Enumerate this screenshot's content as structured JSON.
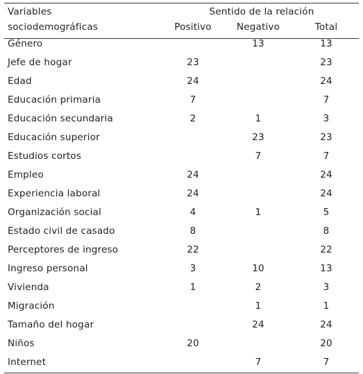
{
  "header": {
    "var_line1": "Variables",
    "var_line2": "sociodemográficas",
    "group_title": "Sentido de la relación",
    "col_positivo": "Positivo",
    "col_negativo": "Negativo",
    "col_total": "Total"
  },
  "rows": [
    {
      "variable": "Género",
      "positivo": "",
      "negativo": "13",
      "total": "13"
    },
    {
      "variable": "Jefe de hogar",
      "positivo": "23",
      "negativo": "",
      "total": "23"
    },
    {
      "variable": "Edad",
      "positivo": "24",
      "negativo": "",
      "total": "24"
    },
    {
      "variable": "Educación primaria",
      "positivo": "7",
      "negativo": "",
      "total": "7"
    },
    {
      "variable": "Educación secundaria",
      "positivo": "2",
      "negativo": "1",
      "total": "3"
    },
    {
      "variable": "Educación superior",
      "positivo": "",
      "negativo": "23",
      "total": "23"
    },
    {
      "variable": "Estudios cortos",
      "positivo": "",
      "negativo": "7",
      "total": "7"
    },
    {
      "variable": "Empleo",
      "positivo": "24",
      "negativo": "",
      "total": "24"
    },
    {
      "variable": "Experiencia laboral",
      "positivo": "24",
      "negativo": "",
      "total": "24"
    },
    {
      "variable": "Organización social",
      "positivo": "4",
      "negativo": "1",
      "total": "5"
    },
    {
      "variable": "Estado civil de casado",
      "positivo": "8",
      "negativo": "",
      "total": "8"
    },
    {
      "variable": "Perceptores de ingreso",
      "positivo": "22",
      "negativo": "",
      "total": "22"
    },
    {
      "variable": "Ingreso personal",
      "positivo": "3",
      "negativo": "10",
      "total": "13"
    },
    {
      "variable": "Vivienda",
      "positivo": "1",
      "negativo": "2",
      "total": "3"
    },
    {
      "variable": "Migración",
      "positivo": "",
      "negativo": "1",
      "total": "1"
    },
    {
      "variable": "Tamaño del hogar",
      "positivo": "",
      "negativo": "24",
      "total": "24"
    },
    {
      "variable": "Niños",
      "positivo": "20",
      "negativo": "",
      "total": "20"
    },
    {
      "variable": "Internet",
      "positivo": "",
      "negativo": "7",
      "total": "7"
    }
  ]
}
